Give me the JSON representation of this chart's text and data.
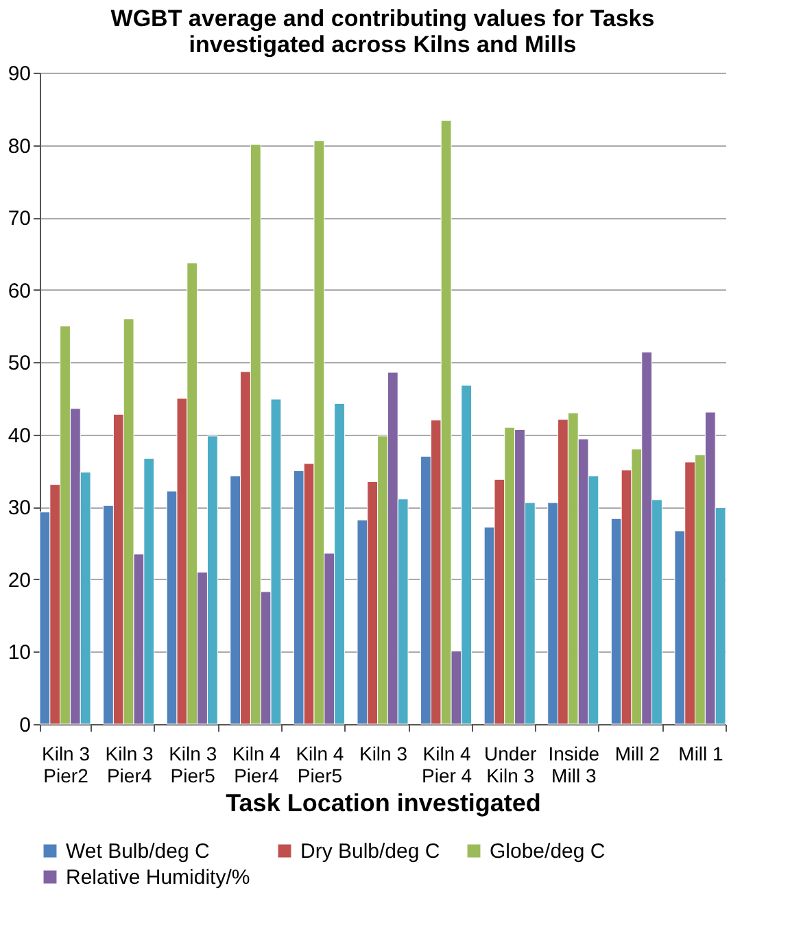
{
  "chart_data": {
    "type": "bar",
    "title": "WGBT average and contributing values for Tasks\ninvestigated across Kilns and Mills",
    "xlabel": "Task Location investigated",
    "categories": [
      "Kiln 3\nPier2",
      "Kiln 3\nPier4",
      "Kiln 3\nPier5",
      "Kiln 4\nPier4",
      "Kiln 4\nPier5",
      "Kiln 3",
      "Kiln 4\nPier 4",
      "Under\nKiln 3",
      "Inside\nMill 3",
      "Mill 2",
      "Mill 1"
    ],
    "series": [
      {
        "name": "Wet Bulb/deg C",
        "color": "#4f81bd",
        "values": [
          29.3,
          30.2,
          32.2,
          34.3,
          35.0,
          28.2,
          37.0,
          27.2,
          30.6,
          28.4,
          26.7
        ]
      },
      {
        "name": "Dry Bulb/deg C",
        "color": "#c0504d",
        "values": [
          33.1,
          42.8,
          45.0,
          48.7,
          36.0,
          33.5,
          42.0,
          33.8,
          42.1,
          35.1,
          36.2
        ]
      },
      {
        "name": "Globe/deg C",
        "color": "#9bbb59",
        "values": [
          55.0,
          56.0,
          63.7,
          80.1,
          80.6,
          39.8,
          83.4,
          41.0,
          43.0,
          38.0,
          37.2
        ]
      },
      {
        "name": "Relative Humidity/%",
        "color": "#8064a2",
        "values": [
          43.6,
          23.5,
          21.0,
          18.3,
          23.6,
          48.6,
          10.1,
          40.7,
          39.4,
          51.4,
          43.1
        ]
      },
      {
        "color": "#4bacc6",
        "values": [
          34.8,
          36.7,
          39.8,
          44.9,
          44.3,
          31.1,
          46.8,
          30.6,
          34.3,
          31.0,
          29.9
        ]
      }
    ],
    "ylim": [
      0,
      90
    ],
    "yticks": [
      0,
      10,
      20,
      30,
      40,
      50,
      60,
      70,
      80,
      90
    ],
    "grid": "y",
    "legend": "bottom"
  }
}
